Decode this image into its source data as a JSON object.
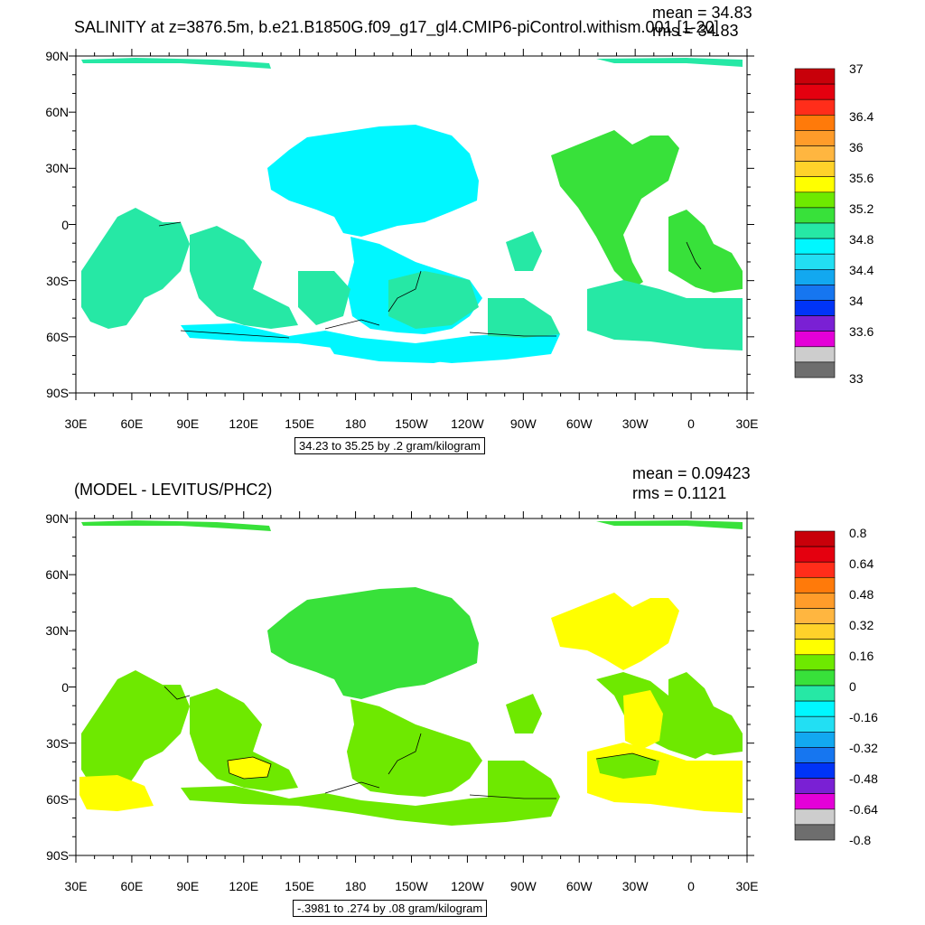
{
  "panels": [
    {
      "title": "SALINITY at z=3876.5m, b.e21.B1850G.f09_g17_gl4.CMIP6-piControl.withism.001 [1-20]",
      "mean_label": "mean = 34.83",
      "rms_label": "rms = 34.83",
      "range_note": "34.23 to 35.25 by .2 gram/kilogram",
      "colorbar_labels": [
        "37",
        "36.4",
        "36",
        "35.6",
        "35.2",
        "34.8",
        "34.4",
        "34",
        "33.6",
        "33"
      ]
    },
    {
      "title": "(MODEL - LEVITUS/PHC2)",
      "mean_label": "mean = 0.09423",
      "rms_label": "rms = 0.1121",
      "range_note": "-.3981 to .274 by .08 gram/kilogram",
      "colorbar_labels": [
        "0.8",
        "0.64",
        "0.48",
        "0.32",
        "0.16",
        "0",
        "-0.16",
        "-0.32",
        "-0.48",
        "-0.64",
        "-0.8"
      ]
    }
  ],
  "axes": {
    "lat_labels": [
      "90N",
      "60N",
      "30N",
      "0",
      "30S",
      "60S",
      "90S"
    ],
    "lon_labels": [
      "30E",
      "60E",
      "90E",
      "120E",
      "150E",
      "180",
      "150W",
      "120W",
      "90W",
      "60W",
      "30W",
      "0",
      "30E"
    ]
  },
  "colors": {
    "palette": [
      "#c8000a",
      "#e4000f",
      "#ff2d1a",
      "#ff7a0a",
      "#ff9c2a",
      "#ffb640",
      "#ffd22a",
      "#ffff00",
      "#6ee900",
      "#38e13a",
      "#26e8a5",
      "#00f7ff",
      "#22dff3",
      "#12a8f0",
      "#1676f0",
      "#0034f7",
      "#7a20d4",
      "#e400d8",
      "#cdcdcd",
      "#6e6e6e"
    ],
    "top_field": "#00f7ff",
    "top_field_alt": "#26e8a5",
    "top_field_warm": "#38e13a",
    "bottom_field": "#38e13a",
    "bottom_field_alt": "#6ee900",
    "bottom_field_warm": "#ffff00"
  }
}
